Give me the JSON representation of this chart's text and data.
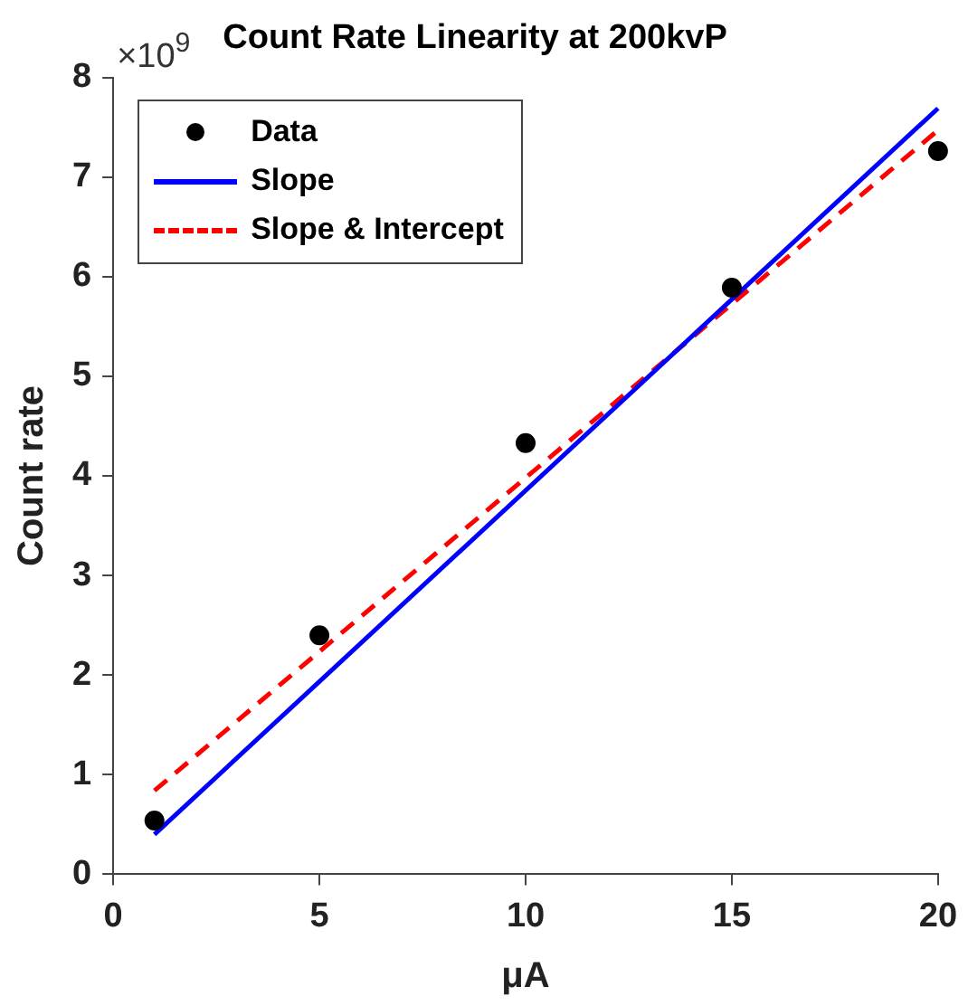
{
  "chart_data": {
    "type": "scatter",
    "title": "Count Rate Linearity at 200kvP",
    "xlabel": "μA",
    "ylabel": "Count rate",
    "annotations": [
      "×10$^{9}$"
    ],
    "xlim": [
      0,
      20
    ],
    "xticks": [
      0,
      5,
      10,
      15,
      20
    ],
    "ylim": [
      0,
      8
    ],
    "yticks": [
      0,
      1,
      2,
      3,
      4,
      5,
      6,
      7,
      8
    ],
    "grid": false,
    "legend": "top left",
    "series": [
      {
        "name": "Data",
        "marker": "circle",
        "color": "#000000",
        "x": [
          1,
          5,
          10,
          15,
          20
        ],
        "values": [
          0.54,
          2.4,
          4.33,
          5.89,
          7.26
        ]
      },
      {
        "name": "Slope",
        "type": "line",
        "marker": "none",
        "line_style": "solid",
        "color": "#0000ff",
        "x": [
          1,
          20
        ],
        "values": [
          0.4,
          7.69
        ]
      },
      {
        "name": "Slope & Intercept",
        "type": "line",
        "marker": "none",
        "line_style": "dashed",
        "color": "#ff0000",
        "x": [
          1,
          20
        ],
        "values": [
          0.84,
          7.47
        ]
      }
    ]
  }
}
